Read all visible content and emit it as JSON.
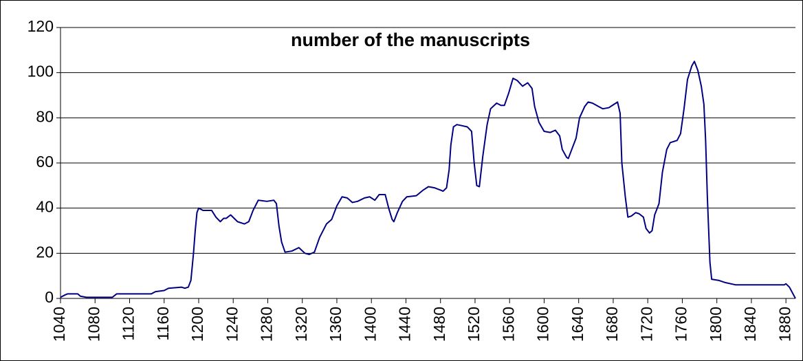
{
  "chart_data": {
    "type": "line",
    "title": "number of the manuscripts",
    "x": [
      1040,
      1045,
      1048,
      1060,
      1063,
      1070,
      1100,
      1105,
      1145,
      1150,
      1160,
      1165,
      1180,
      1184,
      1188,
      1191,
      1194,
      1196,
      1198,
      1200,
      1205,
      1215,
      1220,
      1225,
      1229,
      1232,
      1237,
      1245,
      1253,
      1258,
      1263,
      1269,
      1279,
      1287,
      1290,
      1293,
      1296,
      1300,
      1308,
      1316,
      1323,
      1328,
      1334,
      1340,
      1348,
      1354,
      1360,
      1366,
      1372,
      1378,
      1384,
      1392,
      1398,
      1404,
      1409,
      1416,
      1420,
      1424,
      1426,
      1430,
      1436,
      1441,
      1452,
      1460,
      1466,
      1473,
      1480,
      1483,
      1487,
      1490,
      1492,
      1495,
      1499,
      1505,
      1511,
      1516,
      1519,
      1522,
      1525,
      1529,
      1534,
      1538,
      1545,
      1550,
      1554,
      1559,
      1564,
      1569,
      1575,
      1581,
      1586,
      1589,
      1594,
      1600,
      1607,
      1613,
      1618,
      1621,
      1626,
      1628,
      1632,
      1637,
      1641,
      1647,
      1651,
      1656,
      1663,
      1668,
      1675,
      1681,
      1685,
      1688,
      1690,
      1694,
      1697,
      1701,
      1706,
      1710,
      1715,
      1718,
      1722,
      1725,
      1728,
      1733,
      1737,
      1742,
      1746,
      1754,
      1758,
      1762,
      1766,
      1771,
      1774,
      1778,
      1782,
      1785,
      1787,
      1789,
      1792,
      1794,
      1802,
      1810,
      1822,
      1870,
      1878,
      1880,
      1884,
      1891
    ],
    "series": [
      {
        "name": "number of the manuscripts",
        "color": "#000080",
        "values": [
          0.5,
          1.5,
          2,
          2,
          1,
          0.5,
          0.5,
          2,
          2,
          3,
          3.5,
          4.5,
          5,
          4.5,
          5,
          8,
          20,
          30,
          38,
          40,
          39,
          39,
          36,
          34,
          35.5,
          35.5,
          37,
          34,
          33,
          34,
          39,
          43.5,
          43,
          43.5,
          42,
          32,
          25,
          20.5,
          21,
          22.5,
          20,
          19.5,
          20.5,
          27,
          33,
          35,
          41,
          45,
          44.5,
          42.5,
          43,
          44.5,
          45,
          43.5,
          46,
          46,
          40,
          35,
          34,
          38,
          43,
          45,
          45.5,
          48,
          49.5,
          49,
          48,
          47.5,
          49,
          57,
          68,
          76,
          77,
          76.5,
          76,
          74,
          60,
          50,
          49.5,
          63,
          77,
          84,
          86.5,
          85.5,
          85.5,
          91,
          97.5,
          96.5,
          94,
          95.5,
          93,
          85,
          78,
          74,
          73.5,
          74.5,
          72,
          66,
          62.5,
          62,
          66,
          71,
          80,
          85,
          87,
          86.5,
          85,
          84,
          84.5,
          86,
          87,
          82,
          60,
          45,
          36,
          36.5,
          38,
          37.5,
          36,
          31,
          29,
          30,
          37,
          42,
          56,
          66,
          69,
          70,
          73,
          84,
          97,
          103,
          105,
          101,
          94,
          86,
          70,
          45,
          16,
          8.5,
          8,
          7,
          6,
          6,
          6,
          6.5,
          5,
          0
        ]
      }
    ],
    "xlim": [
      1040,
      1891
    ],
    "ylim": [
      0,
      120
    ],
    "xticks": [
      1040,
      1080,
      1120,
      1160,
      1200,
      1240,
      1280,
      1320,
      1360,
      1400,
      1440,
      1480,
      1520,
      1560,
      1600,
      1640,
      1680,
      1720,
      1760,
      1800,
      1840,
      1880
    ],
    "yticks": [
      0,
      20,
      40,
      60,
      80,
      100,
      120
    ],
    "grid": true
  }
}
